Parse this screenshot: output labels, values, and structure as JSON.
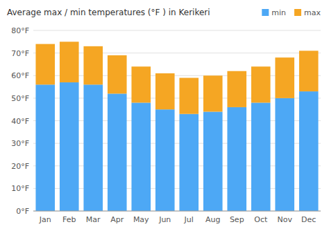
{
  "chart_data": {
    "type": "bar",
    "title": "Average max / min temperatures (°F ) in Kerikeri",
    "categories": [
      "Jan",
      "Feb",
      "Mar",
      "Apr",
      "May",
      "Jun",
      "Jul",
      "Aug",
      "Sep",
      "Oct",
      "Nov",
      "Dec"
    ],
    "series": [
      {
        "name": "min",
        "color": "#4da8f5",
        "values": [
          56,
          57,
          56,
          52,
          48,
          45,
          43,
          44,
          46,
          48,
          50,
          53
        ]
      },
      {
        "name": "max",
        "color": "#f5a623",
        "values": [
          18,
          18,
          17,
          17,
          16,
          16,
          16,
          16,
          16,
          16,
          18,
          18
        ]
      }
    ],
    "stacked": true,
    "ylim": [
      0,
      80
    ],
    "yticks": [
      {
        "value": 0,
        "label": "0°F"
      },
      {
        "value": 10,
        "label": "10°F"
      },
      {
        "value": 20,
        "label": "20°F"
      },
      {
        "value": 30,
        "label": "30°F"
      },
      {
        "value": 40,
        "label": "40°F"
      },
      {
        "value": 50,
        "label": "50°F"
      },
      {
        "value": 60,
        "label": "60°F"
      },
      {
        "value": 70,
        "label": "70°F"
      },
      {
        "value": 80,
        "label": "80°F"
      }
    ],
    "grid": true,
    "legend": "top-right"
  }
}
